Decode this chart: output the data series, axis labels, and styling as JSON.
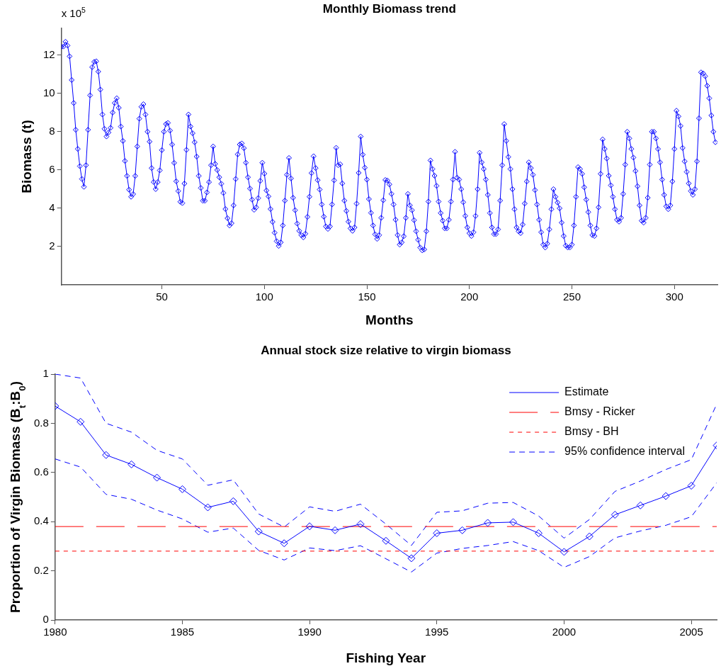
{
  "chart_data": [
    {
      "type": "line",
      "title": "Monthly Biomass trend",
      "xlabel": "Months",
      "ylabel": "Biomass (t)",
      "annotations": [
        "x 10$^{5}$"
      ],
      "x": [
        1,
        2,
        3,
        4,
        5,
        6,
        7,
        8,
        9,
        10,
        11,
        12,
        13,
        14,
        15,
        16,
        17,
        18,
        19,
        20,
        21,
        22,
        23,
        24,
        25,
        26,
        27,
        28,
        29,
        30,
        31,
        32,
        33,
        34,
        35,
        36,
        37,
        38,
        39,
        40,
        41,
        42,
        43,
        44,
        45,
        46,
        47,
        48,
        49,
        50,
        51,
        52,
        53,
        54,
        55,
        56,
        57,
        58,
        59,
        60,
        61,
        62,
        63,
        64,
        65,
        66,
        67,
        68,
        69,
        70,
        71,
        72,
        73,
        74,
        75,
        76,
        77,
        78,
        79,
        80,
        81,
        82,
        83,
        84,
        85,
        86,
        87,
        88,
        89,
        90,
        91,
        92,
        93,
        94,
        95,
        96,
        97,
        98,
        99,
        100,
        101,
        102,
        103,
        104,
        105,
        106,
        107,
        108,
        109,
        110,
        111,
        112,
        113,
        114,
        115,
        116,
        117,
        118,
        119,
        120,
        121,
        122,
        123,
        124,
        125,
        126,
        127,
        128,
        129,
        130,
        131,
        132,
        133,
        134,
        135,
        136,
        137,
        138,
        139,
        140,
        141,
        142,
        143,
        144,
        145,
        146,
        147,
        148,
        149,
        150,
        151,
        152,
        153,
        154,
        155,
        156,
        157,
        158,
        159,
        160,
        161,
        162,
        163,
        164,
        165,
        166,
        167,
        168,
        169,
        170,
        171,
        172,
        173,
        174,
        175,
        176,
        177,
        178,
        179,
        180,
        181,
        182,
        183,
        184,
        185,
        186,
        187,
        188,
        189,
        190,
        191,
        192,
        193,
        194,
        195,
        196,
        197,
        198,
        199,
        200,
        201,
        202,
        203,
        204,
        205,
        206,
        207,
        208,
        209,
        210,
        211,
        212,
        213,
        214,
        215,
        216,
        217,
        218,
        219,
        220,
        221,
        222,
        223,
        224,
        225,
        226,
        227,
        228,
        229,
        230,
        231,
        232,
        233,
        234,
        235,
        236,
        237,
        238,
        239,
        240,
        241,
        242,
        243,
        244,
        245,
        246,
        247,
        248,
        249,
        250,
        251,
        252,
        253,
        254,
        255,
        256,
        257,
        258,
        259,
        260,
        261,
        262,
        263,
        264,
        265,
        266,
        267,
        268,
        269,
        270,
        271,
        272,
        273,
        274,
        275,
        276,
        277,
        278,
        279,
        280,
        281,
        282,
        283,
        284,
        285,
        286,
        287,
        288,
        289,
        290,
        291,
        292,
        293,
        294,
        295,
        296,
        297,
        298,
        299,
        300,
        301,
        302,
        303,
        304,
        305,
        306,
        307,
        308,
        309,
        310,
        311,
        312,
        313,
        314,
        315,
        316,
        317,
        318,
        319,
        320
      ],
      "values": [
        12.44,
        12.45,
        12.7,
        12.5,
        11.94,
        10.7,
        9.5,
        8.1,
        7.1,
        6.2,
        5.53,
        5.12,
        6.25,
        8.1,
        9.9,
        11.37,
        11.65,
        11.68,
        11.14,
        10.2,
        8.9,
        8.15,
        7.75,
        7.96,
        8.2,
        9.0,
        9.5,
        9.75,
        9.25,
        8.27,
        7.52,
        6.47,
        5.69,
        4.97,
        4.6,
        4.74,
        5.69,
        7.23,
        8.68,
        9.3,
        9.44,
        8.9,
        8.0,
        7.48,
        6.1,
        5.37,
        5.0,
        5.37,
        5.98,
        7.04,
        8.0,
        8.4,
        8.46,
        8.06,
        7.33,
        6.37,
        5.41,
        4.9,
        4.34,
        4.27,
        5.29,
        7.05,
        8.9,
        8.27,
        7.92,
        7.45,
        6.7,
        5.69,
        5.06,
        4.39,
        4.39,
        4.83,
        5.37,
        6.25,
        7.23,
        6.32,
        6.0,
        5.62,
        5.28,
        4.8,
        3.96,
        3.48,
        3.1,
        3.22,
        4.15,
        5.53,
        6.82,
        7.33,
        7.39,
        7.14,
        6.38,
        5.62,
        5.03,
        4.45,
        3.92,
        4.05,
        4.53,
        5.43,
        6.38,
        5.81,
        4.93,
        4.62,
        3.96,
        3.29,
        2.72,
        2.28,
        2.03,
        2.22,
        3.1,
        4.4,
        5.75,
        6.63,
        5.56,
        4.55,
        3.9,
        3.2,
        2.82,
        2.6,
        2.48,
        2.67,
        3.55,
        4.6,
        5.84,
        6.72,
        6.1,
        5.47,
        4.98,
        4.2,
        3.56,
        3.05,
        2.92,
        3.05,
        4.2,
        5.46,
        7.16,
        6.25,
        6.3,
        5.3,
        4.4,
        3.86,
        3.3,
        2.95,
        2.82,
        3.0,
        4.24,
        5.85,
        7.75,
        6.8,
        6.12,
        5.5,
        4.48,
        3.76,
        3.1,
        2.64,
        2.4,
        2.6,
        3.5,
        4.42,
        5.48,
        5.45,
        5.25,
        4.75,
        4.2,
        3.4,
        2.6,
        2.1,
        2.22,
        2.54,
        3.5,
        4.75,
        4.15,
        3.9,
        3.38,
        2.8,
        2.35,
        1.95,
        1.8,
        1.85,
        2.8,
        4.35,
        6.5,
        6.05,
        5.7,
        5.17,
        4.35,
        3.75,
        3.35,
        2.95,
        2.95,
        3.4,
        4.35,
        5.5,
        6.95,
        5.6,
        5.5,
        5.0,
        4.32,
        3.6,
        3.0,
        2.7,
        2.55,
        2.75,
        3.6,
        5.0,
        6.9,
        6.4,
        6.05,
        5.5,
        4.7,
        3.75,
        3.0,
        2.65,
        2.65,
        2.9,
        4.4,
        6.25,
        8.4,
        7.52,
        6.68,
        6.05,
        5.0,
        3.95,
        3.0,
        2.8,
        2.7,
        3.15,
        4.25,
        5.4,
        6.4,
        6.1,
        5.75,
        4.95,
        4.2,
        3.4,
        2.75,
        2.1,
        1.95,
        2.15,
        2.9,
        3.95,
        5.0,
        4.6,
        4.3,
        4.0,
        3.25,
        2.55,
        2.05,
        1.95,
        1.95,
        2.1,
        3.1,
        4.6,
        6.15,
        6.05,
        5.8,
        5.1,
        4.45,
        3.8,
        3.1,
        2.6,
        2.55,
        2.95,
        4.05,
        5.8,
        7.6,
        7.1,
        6.6,
        5.7,
        5.2,
        4.6,
        3.95,
        3.4,
        3.3,
        3.5,
        4.75,
        6.28,
        8.0,
        7.65,
        7.1,
        6.65,
        5.95,
        5.15,
        4.15,
        3.35,
        3.25,
        3.5,
        4.55,
        6.28,
        8.0,
        8.0,
        7.65,
        7.1,
        6.4,
        5.5,
        4.7,
        4.1,
        3.95,
        4.15,
        5.4,
        7.1,
        9.1,
        8.8,
        8.3,
        7.15,
        6.45,
        5.9,
        5.3,
        4.9,
        4.7,
        5.0,
        6.45,
        8.7,
        11.1,
        11.05,
        10.9,
        10.4,
        9.75,
        8.85,
        8.0,
        7.45
      ],
      "color": "#0000ff",
      "marker": "diamond",
      "line_style": "solid",
      "xlim": [
        1,
        321
      ],
      "xticks": [
        50,
        100,
        150,
        200,
        250,
        300
      ],
      "ylim": [
        0,
        13.4
      ],
      "yticks": [
        2,
        4,
        6,
        8,
        10,
        12
      ]
    },
    {
      "type": "line",
      "title": "Annual stock size relative to virgin biomass",
      "xlabel": "Fishing Year",
      "ylabel": "Proportion of Virgin Biomass (B$_{t}$:B$_{0}$)",
      "x": [
        1980,
        1981,
        1982,
        1983,
        1984,
        1985,
        1986,
        1987,
        1988,
        1989,
        1990,
        1991,
        1992,
        1993,
        1994,
        1995,
        1996,
        1997,
        1998,
        1999,
        2000,
        2001,
        2002,
        2003,
        2004,
        2005,
        2006
      ],
      "series": [
        {
          "name": "Estimate",
          "color": "#0000ff",
          "marker": "diamond",
          "line_style": "solid",
          "values": [
            0.87,
            0.806,
            0.671,
            0.633,
            0.579,
            0.532,
            0.458,
            0.483,
            0.36,
            0.312,
            0.381,
            0.365,
            0.39,
            0.322,
            0.251,
            0.353,
            0.365,
            0.395,
            0.398,
            0.353,
            0.277,
            0.34,
            0.428,
            0.466,
            0.504,
            0.546,
            0.71
          ]
        },
        {
          "name": "95% confidence interval",
          "color": "#0000ff",
          "marker": "none",
          "line_style": "dashed",
          "values": [
            1.0,
            0.984,
            0.8,
            0.764,
            0.69,
            0.655,
            0.548,
            0.57,
            0.431,
            0.378,
            0.46,
            0.442,
            0.471,
            0.39,
            0.303,
            0.438,
            0.444,
            0.475,
            0.478,
            0.423,
            0.333,
            0.409,
            0.523,
            0.565,
            0.612,
            0.652,
            0.878
          ]
        },
        {
          "color": "#0000ff",
          "marker": "none",
          "line_style": "dashed",
          "values": [
            0.655,
            0.622,
            0.511,
            0.491,
            0.447,
            0.411,
            0.357,
            0.374,
            0.283,
            0.244,
            0.293,
            0.282,
            0.302,
            0.249,
            0.195,
            0.272,
            0.291,
            0.303,
            0.319,
            0.282,
            0.214,
            0.258,
            0.334,
            0.362,
            0.385,
            0.42,
            0.558
          ]
        }
      ],
      "ref_lines": [
        {
          "axis": "y",
          "value": 0.38,
          "label": "Bmsy - Ricker",
          "color": "#ff0000",
          "line_style": "dashed"
        },
        {
          "axis": "y",
          "value": 0.28,
          "label": "Bmsy - BH",
          "color": "#ff0000",
          "line_style": "dotted"
        }
      ],
      "legend": "top right",
      "xlim": [
        1980,
        2006
      ],
      "xticks": [
        1980,
        1985,
        1990,
        1995,
        2000,
        2005
      ],
      "ylim": [
        0,
        1
      ],
      "yticks": [
        0,
        0.2,
        0.4,
        0.6,
        0.8,
        1
      ]
    }
  ]
}
